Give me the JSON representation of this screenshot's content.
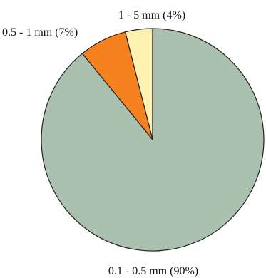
{
  "chart_data": {
    "type": "pie",
    "title": "",
    "slices": [
      {
        "label": "0.1 - 0.5 mm (90%)",
        "value": 90,
        "color": "#a9c1ae"
      },
      {
        "label": "0.5 - 1 mm (7%)",
        "value": 7,
        "color": "#f5821f"
      },
      {
        "label": "1 - 5 mm (4%)",
        "value": 4,
        "color": "#fff2b0"
      }
    ]
  }
}
